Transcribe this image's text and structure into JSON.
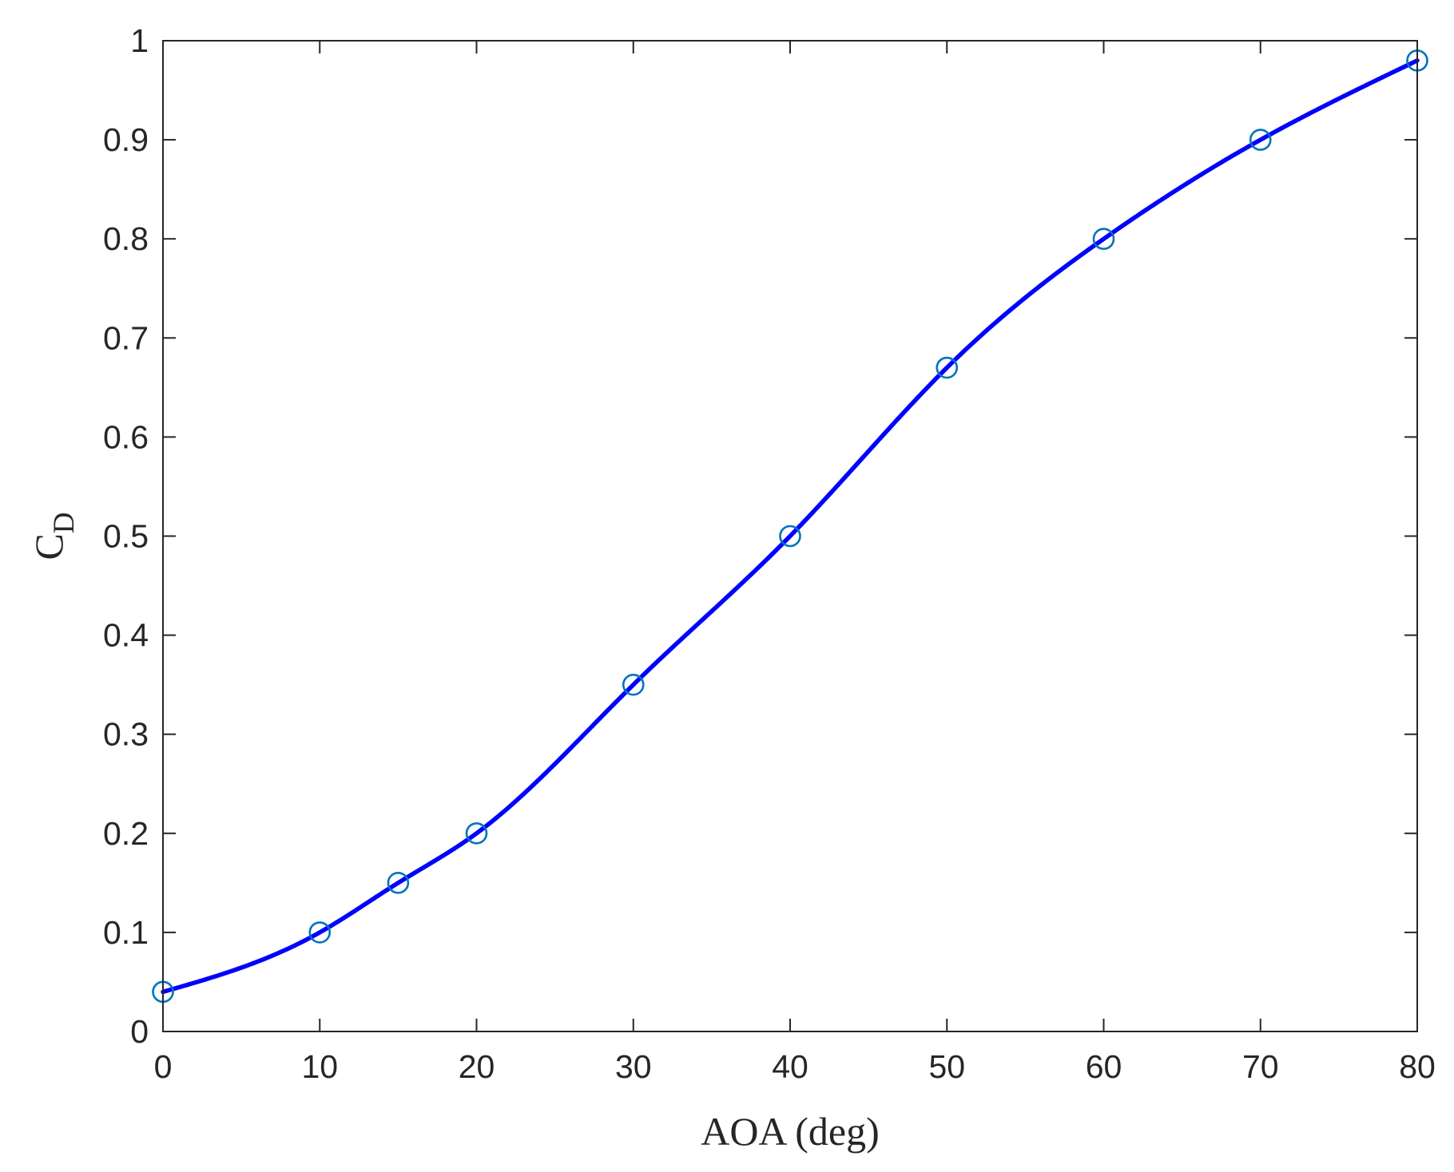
{
  "chart_data": {
    "type": "line",
    "xlabel": "AOA (deg)",
    "ylabel": {
      "main": "C",
      "subscript": "D"
    },
    "xlim": [
      0,
      80
    ],
    "ylim": [
      0,
      1
    ],
    "xticks": [
      0,
      10,
      20,
      30,
      40,
      50,
      60,
      70,
      80
    ],
    "yticks": [
      0,
      0.1,
      0.2,
      0.3,
      0.4,
      0.5,
      0.6,
      0.7,
      0.8,
      0.9,
      1
    ],
    "xtick_labels": [
      "0",
      "10",
      "20",
      "30",
      "40",
      "50",
      "60",
      "70",
      "80"
    ],
    "ytick_labels": [
      "0",
      "0.1",
      "0.2",
      "0.3",
      "0.4",
      "0.5",
      "0.6",
      "0.7",
      "0.8",
      "0.9",
      "1"
    ],
    "grid": false,
    "box": true,
    "series": [
      {
        "style": "markers",
        "marker": "circle",
        "color": "#0072BD",
        "x": [
          0,
          10,
          15,
          20,
          30,
          40,
          50,
          60,
          70,
          80
        ],
        "y": [
          0.04,
          0.1,
          0.15,
          0.2,
          0.35,
          0.5,
          0.67,
          0.8,
          0.9,
          0.98
        ]
      },
      {
        "style": "line",
        "interpolation": "spline",
        "color": "#0000FF",
        "x": [
          0,
          10,
          15,
          20,
          30,
          40,
          50,
          60,
          70,
          80
        ],
        "y": [
          0.04,
          0.1,
          0.15,
          0.2,
          0.35,
          0.5,
          0.67,
          0.8,
          0.9,
          0.98
        ]
      }
    ]
  }
}
